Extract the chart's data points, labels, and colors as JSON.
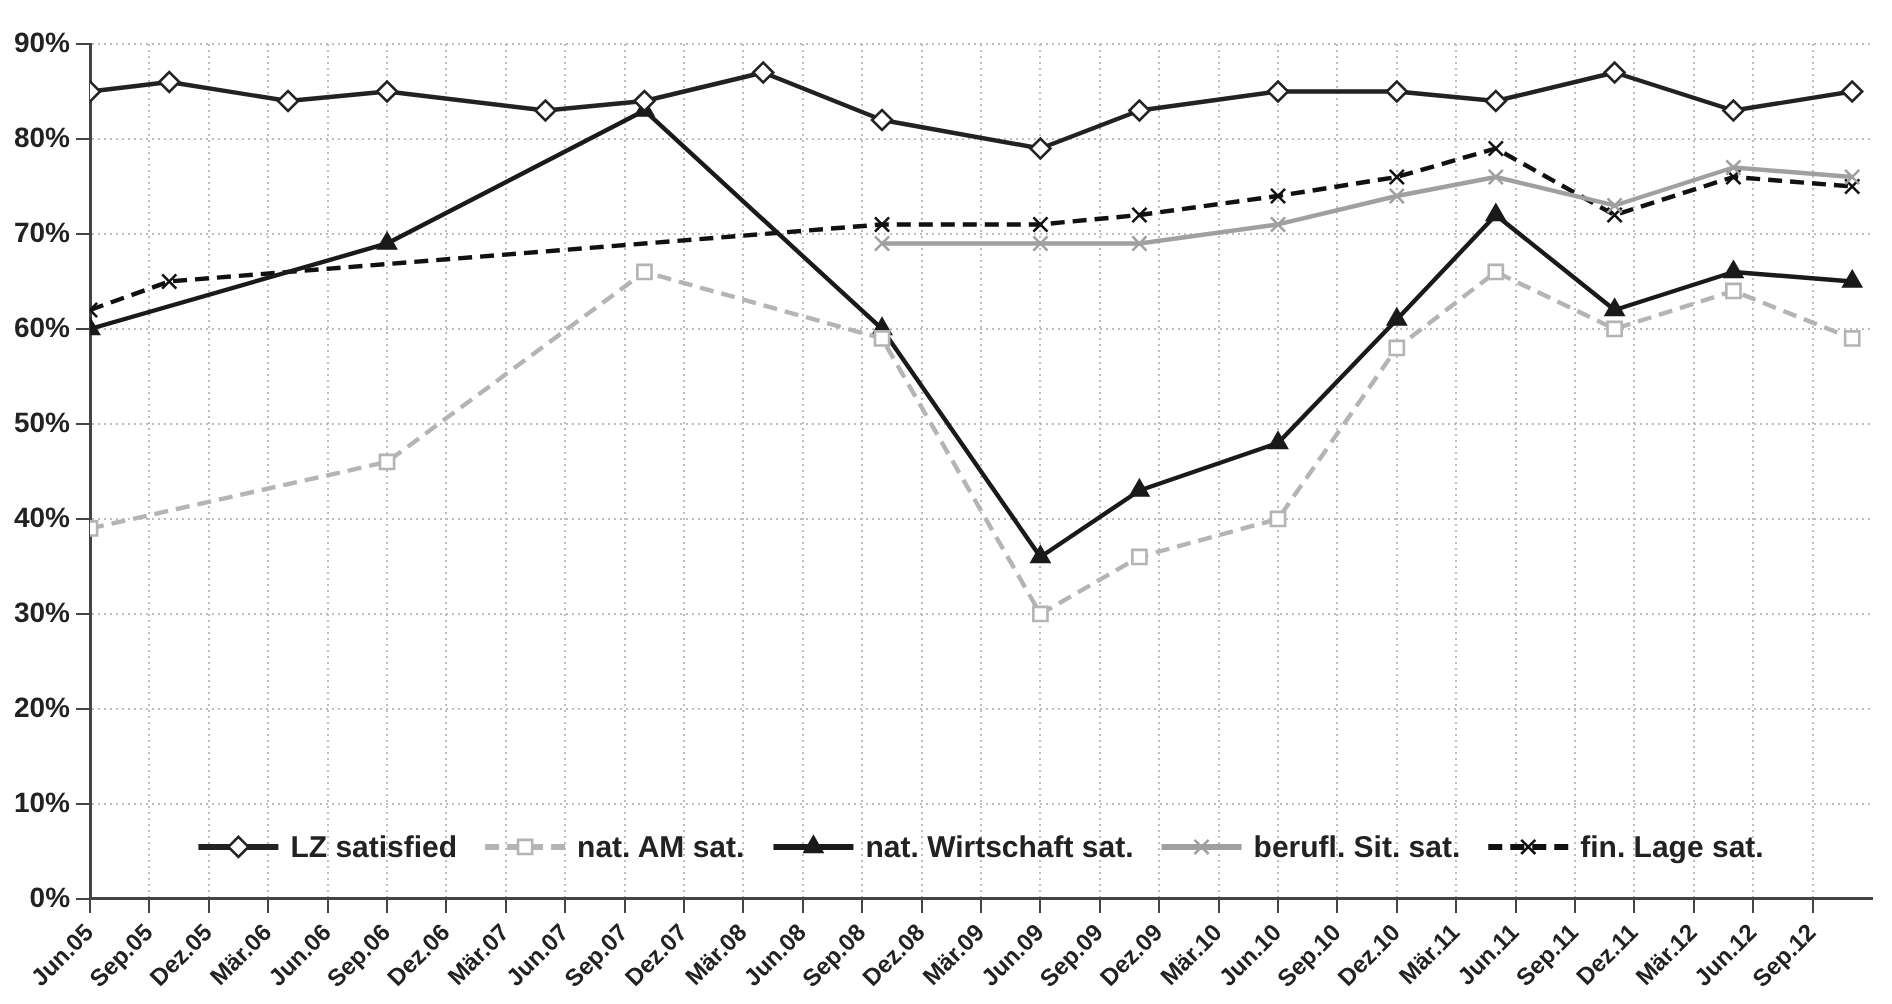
{
  "chart_data": {
    "type": "line",
    "xlim": [
      "2005-06",
      "2012-12"
    ],
    "xticks": [
      {
        "value": "2005-06",
        "label": "Jun.05"
      },
      {
        "value": "2005-09",
        "label": "Sep.05"
      },
      {
        "value": "2005-12",
        "label": "Dez.05"
      },
      {
        "value": "2006-03",
        "label": "Mär.06"
      },
      {
        "value": "2006-06",
        "label": "Jun.06"
      },
      {
        "value": "2006-09",
        "label": "Sep.06"
      },
      {
        "value": "2006-12",
        "label": "Dez.06"
      },
      {
        "value": "2007-03",
        "label": "Mär.07"
      },
      {
        "value": "2007-06",
        "label": "Jun.07"
      },
      {
        "value": "2007-09",
        "label": "Sep.07"
      },
      {
        "value": "2007-12",
        "label": "Dez.07"
      },
      {
        "value": "2008-03",
        "label": "Mär.08"
      },
      {
        "value": "2008-06",
        "label": "Jun.08"
      },
      {
        "value": "2008-09",
        "label": "Sep.08"
      },
      {
        "value": "2008-12",
        "label": "Dez.08"
      },
      {
        "value": "2009-03",
        "label": "Mär.09"
      },
      {
        "value": "2009-06",
        "label": "Jun.09"
      },
      {
        "value": "2009-09",
        "label": "Sep.09"
      },
      {
        "value": "2009-12",
        "label": "Dez.09"
      },
      {
        "value": "2010-03",
        "label": "Mär.10"
      },
      {
        "value": "2010-06",
        "label": "Jun.10"
      },
      {
        "value": "2010-09",
        "label": "Sep.10"
      },
      {
        "value": "2010-12",
        "label": "Dez.10"
      },
      {
        "value": "2011-03",
        "label": "Mär.11"
      },
      {
        "value": "2011-06",
        "label": "Jun.11"
      },
      {
        "value": "2011-09",
        "label": "Sep.11"
      },
      {
        "value": "2011-12",
        "label": "Dez.11"
      },
      {
        "value": "2012-03",
        "label": "Mär.12"
      },
      {
        "value": "2012-06",
        "label": "Jun.12"
      },
      {
        "value": "2012-09",
        "label": "Sep.12"
      }
    ],
    "ylim": [
      0,
      90
    ],
    "yticks": [
      {
        "value": 0,
        "label": "0%"
      },
      {
        "value": 10,
        "label": "10%"
      },
      {
        "value": 20,
        "label": "20%"
      },
      {
        "value": 30,
        "label": "30%"
      },
      {
        "value": 40,
        "label": "40%"
      },
      {
        "value": 50,
        "label": "50%"
      },
      {
        "value": 60,
        "label": "60%"
      },
      {
        "value": 70,
        "label": "70%"
      },
      {
        "value": 80,
        "label": "80%"
      },
      {
        "value": 90,
        "label": "90%"
      }
    ],
    "grid": true,
    "legend": "bottom",
    "series": [
      {
        "name": "LZ satisfied",
        "color": "#222222",
        "marker": "diamond",
        "line_style": "solid",
        "x": [
          "2005-06",
          "2005-10",
          "2006-04",
          "2006-09",
          "2007-05",
          "2007-10",
          "2008-04",
          "2008-10",
          "2009-06",
          "2009-11",
          "2010-06",
          "2010-12",
          "2011-05",
          "2011-11",
          "2012-05",
          "2012-11"
        ],
        "values": [
          85,
          86,
          84,
          85,
          83,
          84,
          87,
          82,
          79,
          83,
          85,
          85,
          84,
          87,
          83,
          85
        ]
      },
      {
        "name": "nat. AM sat.",
        "color": "#b4b4b4",
        "marker": "square",
        "line_style": "dashed",
        "x": [
          "2005-06",
          "2006-09",
          "2007-10",
          "2008-10",
          "2009-06",
          "2009-11",
          "2010-06",
          "2010-12",
          "2011-05",
          "2011-11",
          "2012-05",
          "2012-11"
        ],
        "values": [
          39,
          46,
          66,
          59,
          30,
          36,
          40,
          58,
          66,
          60,
          64,
          59
        ]
      },
      {
        "name": "nat. Wirtschaft sat.",
        "color": "#1a1a1a",
        "marker": "triangle",
        "line_style": "solid",
        "x": [
          "2005-06",
          "2006-09",
          "2007-10",
          "2008-10",
          "2009-06",
          "2009-11",
          "2010-06",
          "2010-12",
          "2011-05",
          "2011-11",
          "2012-05",
          "2012-11"
        ],
        "values": [
          60,
          69,
          83,
          60,
          36,
          43,
          48,
          61,
          72,
          62,
          66,
          65
        ]
      },
      {
        "name": "berufl. Sit. sat.",
        "color": "#a0a0a0",
        "marker": "cross",
        "line_style": "solid",
        "x": [
          "2008-10",
          "2009-06",
          "2009-11",
          "2010-06",
          "2010-12",
          "2011-05",
          "2011-11",
          "2012-05",
          "2012-11"
        ],
        "values": [
          69,
          69,
          69,
          71,
          74,
          76,
          73,
          77,
          76
        ]
      },
      {
        "name": "fin. Lage sat.",
        "color": "#111111",
        "marker": "cross",
        "line_style": "dashed",
        "x": [
          "2005-06",
          "2005-10",
          "2008-10",
          "2009-06",
          "2009-11",
          "2010-06",
          "2010-12",
          "2011-05",
          "2011-11",
          "2012-05",
          "2012-11"
        ],
        "values": [
          62,
          65,
          71,
          71,
          72,
          74,
          76,
          79,
          72,
          76,
          75
        ]
      }
    ]
  }
}
